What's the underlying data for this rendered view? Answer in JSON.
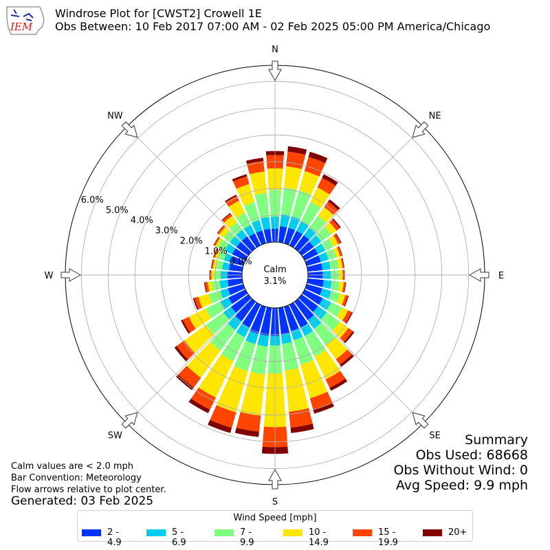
{
  "header": {
    "title_line1": "Windrose Plot for [CWST2] Crowell 1E",
    "title_line2": "Obs Between: 10 Feb 2017 07:00 AM - 02 Feb 2025 05:00 PM America/Chicago",
    "logo_text": "IEM"
  },
  "summary": {
    "heading": "Summary",
    "obs_used": "Obs Used: 68668",
    "obs_without_wind": "Obs Without Wind: 0",
    "avg_speed": "Avg Speed: 9.9 mph"
  },
  "notes": {
    "calm_note": "Calm values are < 2.0 mph",
    "bar_convention": "Bar Convention: Meteorology",
    "flow_arrows": "Flow arrows relative to plot center.",
    "generated": "Generated: 03 Feb 2025"
  },
  "legend": {
    "title": "Wind Speed [mph]",
    "items": [
      {
        "label": "2 - 4.9",
        "color": "#0033ff"
      },
      {
        "label": "5 - 6.9",
        "color": "#00ccee"
      },
      {
        "label": "7 - 9.9",
        "color": "#80ff80"
      },
      {
        "label": "10 - 14.9",
        "color": "#ffe600"
      },
      {
        "label": "15 - 19.9",
        "color": "#ff4400"
      },
      {
        "label": "20+",
        "color": "#800000"
      }
    ]
  },
  "chart_data": {
    "type": "windrose",
    "calm_label": "Calm",
    "calm_value": "3.1%",
    "directions": [
      "N",
      "NE",
      "E",
      "SE",
      "S",
      "SW",
      "W",
      "NW"
    ],
    "radial_ticks": [
      "0.0%",
      "1.0%",
      "2.0%",
      "3.0%",
      "4.0%",
      "5.0%",
      "6.0%"
    ],
    "rmax": 6.6,
    "sector_bearings": [
      0,
      10,
      20,
      30,
      40,
      50,
      60,
      70,
      80,
      90,
      100,
      110,
      120,
      130,
      140,
      150,
      160,
      170,
      180,
      190,
      200,
      210,
      220,
      230,
      240,
      250,
      260,
      270,
      280,
      290,
      300,
      310,
      320,
      330,
      340,
      350
    ],
    "series": [
      {
        "name": "2 - 4.9",
        "color": "#0033ff",
        "values": [
          0.5,
          0.6,
          0.6,
          0.6,
          0.6,
          0.55,
          0.55,
          0.55,
          0.55,
          0.55,
          0.6,
          0.6,
          0.75,
          0.75,
          0.85,
          0.95,
          0.95,
          1.0,
          1.05,
          1.05,
          1.05,
          0.95,
          0.9,
          0.8,
          0.7,
          0.6,
          0.55,
          0.55,
          0.5,
          0.5,
          0.55,
          0.55,
          0.55,
          0.5,
          0.5,
          0.5
        ]
      },
      {
        "name": "5 - 6.9",
        "color": "#00ccee",
        "values": [
          0.45,
          0.45,
          0.45,
          0.4,
          0.35,
          0.35,
          0.3,
          0.3,
          0.3,
          0.3,
          0.3,
          0.35,
          0.35,
          0.4,
          0.4,
          0.35,
          0.35,
          0.35,
          0.35,
          0.4,
          0.4,
          0.4,
          0.4,
          0.35,
          0.35,
          0.3,
          0.3,
          0.25,
          0.25,
          0.25,
          0.3,
          0.3,
          0.3,
          0.35,
          0.4,
          0.45
        ]
      },
      {
        "name": "7 - 9.9",
        "color": "#80ff80",
        "values": [
          1.0,
          1.0,
          1.0,
          0.8,
          0.55,
          0.45,
          0.35,
          0.3,
          0.3,
          0.3,
          0.3,
          0.35,
          0.45,
          0.6,
          0.75,
          0.85,
          0.95,
          1.0,
          1.05,
          1.05,
          1.05,
          1.0,
          0.95,
          0.8,
          0.6,
          0.45,
          0.3,
          0.25,
          0.25,
          0.25,
          0.3,
          0.3,
          0.35,
          0.5,
          0.7,
          0.9
        ]
      },
      {
        "name": "10 - 14.9",
        "color": "#ffe600",
        "values": [
          0.8,
          0.8,
          0.75,
          0.6,
          0.4,
          0.25,
          0.2,
          0.15,
          0.15,
          0.15,
          0.15,
          0.2,
          0.25,
          0.4,
          0.65,
          0.95,
          1.3,
          1.55,
          2.0,
          1.55,
          1.6,
          1.5,
          1.25,
          1.0,
          0.7,
          0.4,
          0.15,
          0.1,
          0.1,
          0.1,
          0.1,
          0.2,
          0.3,
          0.5,
          0.7,
          0.8
        ]
      },
      {
        "name": "15 - 19.9",
        "color": "#ff4400",
        "values": [
          0.5,
          0.55,
          0.55,
          0.4,
          0.25,
          0.15,
          0.1,
          0.07,
          0.05,
          0.05,
          0.07,
          0.1,
          0.15,
          0.2,
          0.25,
          0.35,
          0.45,
          0.6,
          0.75,
          0.6,
          0.6,
          0.5,
          0.45,
          0.35,
          0.25,
          0.15,
          0.1,
          0.05,
          0.05,
          0.05,
          0.05,
          0.07,
          0.1,
          0.2,
          0.3,
          0.4
        ]
      },
      {
        "name": "20+",
        "color": "#800000",
        "values": [
          0.15,
          0.2,
          0.2,
          0.15,
          0.1,
          0.05,
          0.03,
          0.02,
          0.02,
          0.02,
          0.02,
          0.03,
          0.05,
          0.07,
          0.1,
          0.12,
          0.15,
          0.2,
          0.25,
          0.2,
          0.2,
          0.15,
          0.12,
          0.1,
          0.07,
          0.05,
          0.03,
          0.02,
          0.02,
          0.02,
          0.02,
          0.02,
          0.03,
          0.05,
          0.08,
          0.12
        ]
      }
    ]
  }
}
